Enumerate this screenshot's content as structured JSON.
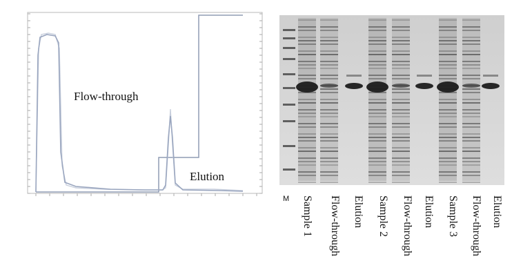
{
  "figure": {
    "chromatogram": {
      "annotations": {
        "flow_through": "Flow-through",
        "elution": "Elution"
      },
      "colors": {
        "uv_trace": "#9aa6bf",
        "uv_trace_2": "#c8cfdd",
        "gradient": "#8f9bb4",
        "axis": "#aaaaaa"
      }
    },
    "gel": {
      "marker_label": "M",
      "lanes": [
        {
          "label": "Sample 1"
        },
        {
          "label": "Flow-through"
        },
        {
          "label": "Elution"
        },
        {
          "label": "Sample 2"
        },
        {
          "label": "Flow-through"
        },
        {
          "label": "Elution"
        },
        {
          "label": "Sample 3"
        },
        {
          "label": "Flow-through"
        },
        {
          "label": "Elution"
        }
      ],
      "colors": {
        "background": "#d8d8d8",
        "band": "#2a2a2a"
      }
    }
  }
}
